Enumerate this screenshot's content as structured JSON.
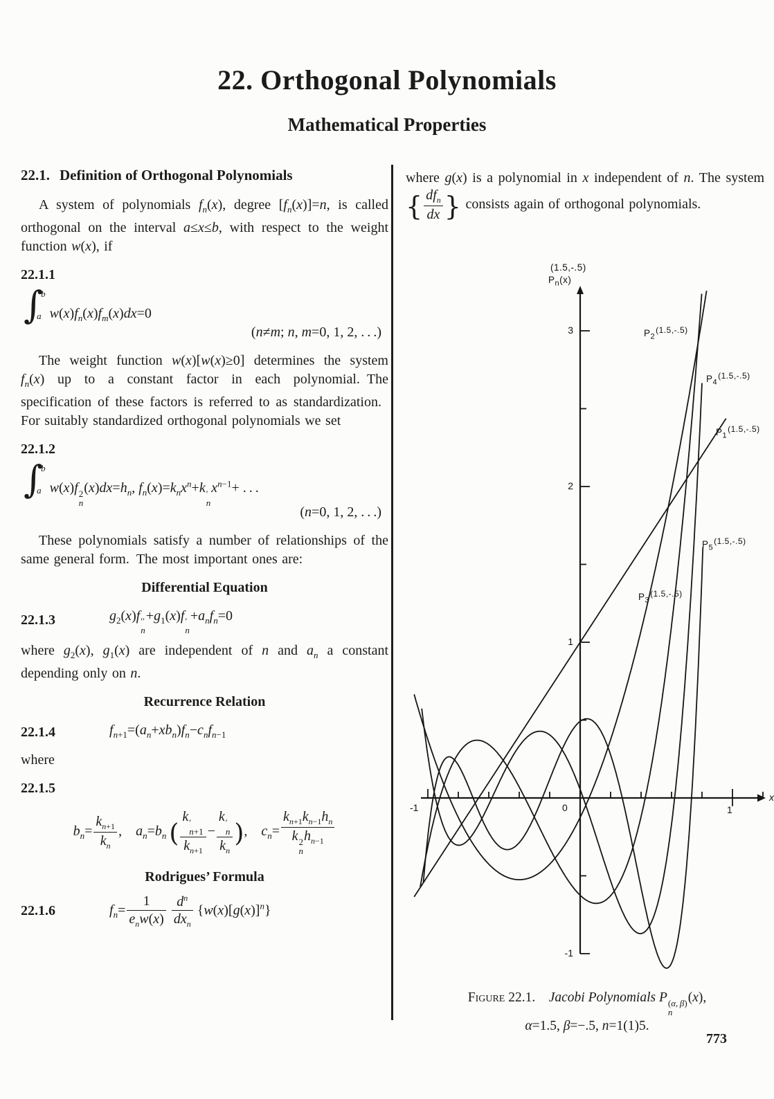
{
  "page": {
    "title": "22. Orthogonal Polynomials",
    "subtitle": "Mathematical Properties",
    "page_number": "773"
  },
  "left": {
    "sec_num": "22.1.",
    "sec_title": "Definition of Orthogonal Polynomials",
    "para_intro": "A system of polynomials <i>f<sub>n</sub></i>(<i>x</i>), degree [<i>f<sub>n</sub></i>(<i>x</i>)]=<i>n</i>, is called orthogonal on the interval <i>a</i>≤<i>x</i>≤<i>b</i>, with respect to the weight function <i>w</i>(<i>x</i>), if",
    "eq1": {
      "num": "22.1.1",
      "body": "<span class='intgrp'><span class='intsign'>∫</span><span class='intlims'><span class='t'><i>b</i></span><span class='b'><i>a</i></span></span></span><span><i>w</i>(<i>x</i>)<i>f<sub>n</sub></i>(<i>x</i>)<i>f<sub>m</sub></i>(<i>x</i>)<i>dx</i>=0</span>",
      "cond": "(<i>n</i>≠<i>m</i>; <i>n</i>, <i>m</i>=0, 1, 2, . . .)"
    },
    "para_weight": "The weight function <i>w</i>(<i>x</i>)[<i>w</i>(<i>x</i>)≥0] determines the system <i>f<sub>n</sub></i>(<i>x</i>) up to a constant factor in each polynomial. The specification of these factors is referred to as standardization. For suitably standardized orthogonal polynomials we set",
    "eq2": {
      "num": "22.1.2",
      "body": "<span class='intgrp'><span class='intsign'>∫</span><span class='intlims'><span class='t'><i>b</i></span><span class='b'><i>a</i></span></span></span><span><i>w</i>(<i>x</i>)<i>f</i><span class='ss'><span>2</span><span><i>n</i></span></span>(<i>x</i>)<i>dx</i>=<i>h<sub>n</sub></i>, <i>f<sub>n</sub></i>(<i>x</i>)=<i>k<sub>n</sub>x<sup>n</sup></i>+<i>k</i><span class='ss'><span>′</span><span><i>n</i></span></span><i>x</i><sup><i>n</i>−1</sup>+ . . .</span>",
      "cond": "(<i>n</i>=0, 1, 2, . . .)"
    },
    "para_relations": "These polynomials satisfy a number of relationships of the same general form. The most important ones are:",
    "head_diff": "Differential Equation",
    "eq3": {
      "num": "22.1.3",
      "body": "<i>g</i><sub>2</sub>(<i>x</i>)<i>f</i><span class='ss'><span>′′</span><span><i>n</i></span></span>+<i>g</i><sub>1</sub>(<i>x</i>)<i>f</i><span class='ss'><span>′</span><span><i>n</i></span></span>+<i>a<sub>n</sub>f<sub>n</sub></i>=0"
    },
    "para_where_g2": "where <i>g</i><sub>2</sub>(<i>x</i>), <i>g</i><sub>1</sub>(<i>x</i>) are independent of <i>n</i> and <i>a<sub>n</sub></i> a constant depending only on <i>n</i>.",
    "head_rec": "Recurrence Relation",
    "eq4": {
      "num": "22.1.4",
      "body": "<i>f</i><sub><i>n</i>+1</sub>=(<i>a<sub>n</sub></i>+<i>xb<sub>n</sub></i>)<i>f<sub>n</sub></i>−<i>c<sub>n</sub>f</i><sub><i>n</i>−1</sub>"
    },
    "where_word": "where",
    "eq5": {
      "num": "22.1.5",
      "body": "<i>b<sub>n</sub></i>=<span class='frac'><span class='num'><i>k</i><sub><i>n</i>+1</sub></span><span class='den'><i>k<sub>n</sub></i></span></span>, <i>a<sub>n</sub></i>=<i>b<sub>n</sub></i> <span class='bigp'>(</span><span class='frac'><span class='num'><i>k</i><span class='ss'><span>′</span><span><i>n</i>+1</span></span></span><span class='den'><i>k</i><sub><i>n</i>+1</sub></span></span>−<span class='frac'><span class='num'><i>k</i><span class='ss'><span>′</span><span><i>n</i></span></span></span><span class='den'><i>k<sub>n</sub></i></span></span><span class='bigp'>)</span>, <i>c<sub>n</sub></i>=<span class='frac'><span class='num'><i>k</i><sub><i>n</i>+1</sub><i>k</i><sub><i>n</i>−1</sub><i>h<sub>n</sub></i></span><span class='den'><i>k</i><span class='ss'><span>2</span><span><i>n</i></span></span><i>h</i><sub><i>n</i>−1</sub></span></span>"
    },
    "head_rod": "Rodrigues’ Formula",
    "eq6": {
      "num": "22.1.6",
      "body": "<i>f<sub>n</sub></i>=<span class='frac'><span class='num'>1</span><span class='den'><i>e<sub>n</sub>w</i>(<i>x</i>)</span></span> <span class='frac'><span class='num'><i>d<sup>n</sup></i></span><span class='den'><i>dx<sub>n</sub></i></span></span> {<i>w</i>(<i>x</i>)[<i>g</i>(<i>x</i>)]<sup><i>n</i></sup>}"
    }
  },
  "right": {
    "para_where_gx": "where <i>g</i>(<i>x</i>) is a polynomial in <i>x</i> independent of <i>n</i>. The system <span class='bigb'>{</span><span class='frac'><span class='num'><i>df<sub>n</sub></i></span><span class='den'><i>dx</i></span></span><span class='bigb'>}</span> consists again of orthogonal polynomials."
  },
  "figure": {
    "type": "line",
    "alpha": 1.5,
    "beta": -0.5,
    "x_axis_end_label": "x",
    "y_axis_param_label": "(1.5,-.5)",
    "y_axis_fn_label": "P<sub>n</sub>(x)",
    "x_ticks": {
      "min": -1,
      "max": 1.2,
      "step": 0.2
    },
    "y_ticks": {
      "min": -1,
      "max": 3,
      "step": 0.5
    },
    "x_tick_labels": [
      {
        "v": -1,
        "t": "-1"
      },
      {
        "v": 0,
        "t": "0"
      },
      {
        "v": 1,
        "t": "1"
      }
    ],
    "y_tick_labels": [
      {
        "v": 3,
        "t": "3"
      },
      {
        "v": 2,
        "t": "2"
      },
      {
        "v": 1,
        "t": "1"
      },
      {
        "v": -1,
        "t": "-1"
      }
    ],
    "curves": [
      {
        "n": 1,
        "xmin": -1.09,
        "xmax": 0.96
      },
      {
        "n": 2,
        "xmin": -1.09,
        "xmax": 0.83
      },
      {
        "n": 3,
        "xmin": -1.05,
        "xmax": 0.8
      },
      {
        "n": 4,
        "xmin": -1.04,
        "xmax": 0.802
      },
      {
        "n": 5,
        "xmin": -1.03,
        "xmax": 0.807
      }
    ],
    "curve_labels": [
      {
        "id": "p2",
        "html": "P<sub>2</sub><span class='raise'>(1.5,-.5)</span>"
      },
      {
        "id": "p4",
        "html": "P<sub>4</sub><span class='raise'>(1.5,-.5)</span>"
      },
      {
        "id": "p1",
        "html": "P<sub>1</sub><span class='raise'>(1.5,-.5)</span>"
      },
      {
        "id": "p5",
        "html": "P<sub>5</sub><span class='raise'>(1.5,-.5)</span>"
      },
      {
        "id": "p3",
        "html": "P<sub>3</sub><span class='raise'>(1.5,-.5)</span>"
      }
    ],
    "caption_line1": "F<span class='sc'>igure</span> 22.1. <i>Jacobi Polynomials P</i><span class='ss'><span>(<i>α</i>, <i>β</i>)</span><span><i>n</i></span></span>(<i>x</i>),",
    "caption_line2": "<i>α</i>=1.5, <i>β</i>=−.5, <i>n</i>=1(1)5.",
    "ink_color": "#161616"
  }
}
